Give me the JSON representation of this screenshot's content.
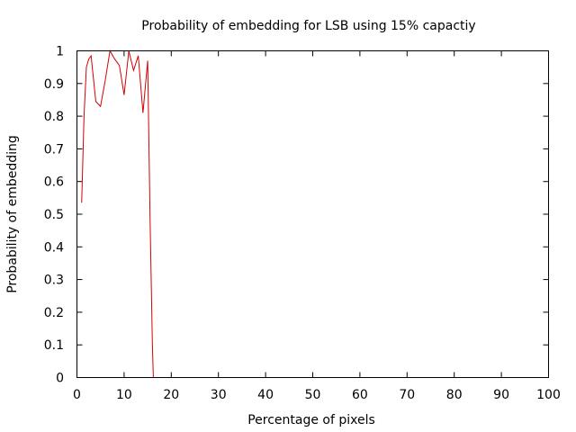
{
  "chart_data": {
    "type": "line",
    "title": "Probability of embedding for LSB using 15% capactiy",
    "xlabel": "Percentage of pixels",
    "ylabel": "Probability of embedding",
    "xlim": [
      0,
      100
    ],
    "ylim": [
      0,
      1
    ],
    "xticks": [
      0,
      10,
      20,
      30,
      40,
      50,
      60,
      70,
      80,
      90,
      100
    ],
    "yticks": [
      0,
      0.1,
      0.2,
      0.3,
      0.4,
      0.5,
      0.6,
      0.7,
      0.8,
      0.9,
      1
    ],
    "grid": false,
    "line_color": "#d40000",
    "series": [
      {
        "x": [
          1,
          1.5,
          2,
          2.5,
          3,
          4,
          5,
          6,
          7,
          8,
          9,
          10,
          11,
          12,
          13,
          14,
          15,
          15.5,
          16,
          16.2
        ],
        "values": [
          0.535,
          0.8,
          0.95,
          0.975,
          0.985,
          0.845,
          0.83,
          0.91,
          1.0,
          0.975,
          0.955,
          0.865,
          1.0,
          0.94,
          0.985,
          0.81,
          0.97,
          0.49,
          0.1,
          0.0
        ]
      }
    ]
  }
}
